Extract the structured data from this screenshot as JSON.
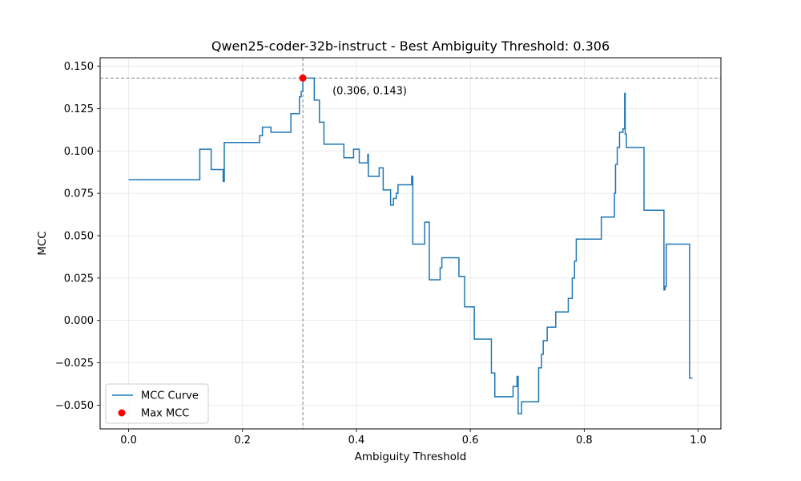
{
  "chart_data": {
    "type": "line",
    "title": "Qwen25-coder-32b-instruct - Best Ambiguity Threshold: 0.306",
    "xlabel": "Ambiguity Threshold",
    "ylabel": "MCC",
    "xlim": [
      -0.05,
      1.04
    ],
    "ylim": [
      -0.064,
      0.155
    ],
    "xticks": [
      0.0,
      0.2,
      0.4,
      0.6,
      0.8,
      1.0
    ],
    "xtick_labels": [
      "0.0",
      "0.2",
      "0.4",
      "0.6",
      "0.8",
      "1.0"
    ],
    "yticks": [
      -0.05,
      -0.025,
      0.0,
      0.025,
      0.05,
      0.075,
      0.1,
      0.125,
      0.15
    ],
    "ytick_labels": [
      "−0.050",
      "−0.025",
      "0.000",
      "0.025",
      "0.050",
      "0.075",
      "0.100",
      "0.125",
      "0.150"
    ],
    "grid": true,
    "legend_position": "lower-left",
    "series": [
      {
        "name": "MCC Curve",
        "color": "#1f77b4",
        "points": [
          [
            0.0,
            0.083
          ],
          [
            0.125,
            0.083
          ],
          [
            0.125,
            0.101
          ],
          [
            0.145,
            0.101
          ],
          [
            0.145,
            0.089
          ],
          [
            0.166,
            0.089
          ],
          [
            0.166,
            0.082
          ],
          [
            0.168,
            0.082
          ],
          [
            0.168,
            0.105
          ],
          [
            0.23,
            0.105
          ],
          [
            0.23,
            0.109
          ],
          [
            0.235,
            0.109
          ],
          [
            0.235,
            0.114
          ],
          [
            0.25,
            0.114
          ],
          [
            0.25,
            0.111
          ],
          [
            0.285,
            0.111
          ],
          [
            0.285,
            0.122
          ],
          [
            0.3,
            0.122
          ],
          [
            0.3,
            0.132
          ],
          [
            0.303,
            0.132
          ],
          [
            0.303,
            0.135
          ],
          [
            0.306,
            0.135
          ],
          [
            0.306,
            0.143
          ],
          [
            0.326,
            0.143
          ],
          [
            0.326,
            0.13
          ],
          [
            0.335,
            0.13
          ],
          [
            0.335,
            0.117
          ],
          [
            0.343,
            0.117
          ],
          [
            0.343,
            0.104
          ],
          [
            0.378,
            0.104
          ],
          [
            0.378,
            0.096
          ],
          [
            0.395,
            0.096
          ],
          [
            0.395,
            0.101
          ],
          [
            0.405,
            0.101
          ],
          [
            0.405,
            0.093
          ],
          [
            0.42,
            0.093
          ],
          [
            0.42,
            0.098
          ],
          [
            0.421,
            0.098
          ],
          [
            0.421,
            0.085
          ],
          [
            0.44,
            0.085
          ],
          [
            0.44,
            0.09
          ],
          [
            0.447,
            0.09
          ],
          [
            0.447,
            0.077
          ],
          [
            0.46,
            0.077
          ],
          [
            0.46,
            0.068
          ],
          [
            0.465,
            0.068
          ],
          [
            0.465,
            0.072
          ],
          [
            0.47,
            0.072
          ],
          [
            0.47,
            0.075
          ],
          [
            0.473,
            0.075
          ],
          [
            0.473,
            0.08
          ],
          [
            0.497,
            0.08
          ],
          [
            0.497,
            0.085
          ],
          [
            0.499,
            0.085
          ],
          [
            0.499,
            0.045
          ],
          [
            0.52,
            0.045
          ],
          [
            0.52,
            0.058
          ],
          [
            0.528,
            0.058
          ],
          [
            0.528,
            0.024
          ],
          [
            0.547,
            0.024
          ],
          [
            0.547,
            0.031
          ],
          [
            0.55,
            0.031
          ],
          [
            0.55,
            0.037
          ],
          [
            0.58,
            0.037
          ],
          [
            0.58,
            0.026
          ],
          [
            0.59,
            0.026
          ],
          [
            0.59,
            0.008
          ],
          [
            0.607,
            0.008
          ],
          [
            0.607,
            -0.011
          ],
          [
            0.637,
            -0.011
          ],
          [
            0.637,
            -0.031
          ],
          [
            0.643,
            -0.031
          ],
          [
            0.643,
            -0.045
          ],
          [
            0.675,
            -0.045
          ],
          [
            0.675,
            -0.039
          ],
          [
            0.682,
            -0.039
          ],
          [
            0.682,
            -0.033
          ],
          [
            0.684,
            -0.033
          ],
          [
            0.684,
            -0.055
          ],
          [
            0.69,
            -0.055
          ],
          [
            0.69,
            -0.048
          ],
          [
            0.72,
            -0.048
          ],
          [
            0.72,
            -0.028
          ],
          [
            0.725,
            -0.028
          ],
          [
            0.725,
            -0.02
          ],
          [
            0.728,
            -0.02
          ],
          [
            0.728,
            -0.012
          ],
          [
            0.735,
            -0.012
          ],
          [
            0.735,
            -0.004
          ],
          [
            0.75,
            -0.004
          ],
          [
            0.75,
            0.005
          ],
          [
            0.772,
            0.005
          ],
          [
            0.772,
            0.013
          ],
          [
            0.779,
            0.013
          ],
          [
            0.779,
            0.025
          ],
          [
            0.783,
            0.025
          ],
          [
            0.783,
            0.035
          ],
          [
            0.786,
            0.035
          ],
          [
            0.786,
            0.048
          ],
          [
            0.83,
            0.048
          ],
          [
            0.83,
            0.061
          ],
          [
            0.853,
            0.061
          ],
          [
            0.853,
            0.075
          ],
          [
            0.855,
            0.075
          ],
          [
            0.855,
            0.092
          ],
          [
            0.858,
            0.092
          ],
          [
            0.858,
            0.102
          ],
          [
            0.862,
            0.102
          ],
          [
            0.862,
            0.111
          ],
          [
            0.868,
            0.111
          ],
          [
            0.868,
            0.113
          ],
          [
            0.871,
            0.113
          ],
          [
            0.871,
            0.134
          ],
          [
            0.872,
            0.134
          ],
          [
            0.872,
            0.11
          ],
          [
            0.874,
            0.11
          ],
          [
            0.874,
            0.102
          ],
          [
            0.905,
            0.102
          ],
          [
            0.905,
            0.065
          ],
          [
            0.94,
            0.065
          ],
          [
            0.94,
            0.018
          ],
          [
            0.942,
            0.018
          ],
          [
            0.942,
            0.02
          ],
          [
            0.944,
            0.02
          ],
          [
            0.944,
            0.045
          ],
          [
            0.985,
            0.045
          ],
          [
            0.985,
            -0.034
          ],
          [
            0.99,
            -0.034
          ]
        ]
      },
      {
        "name": "Max MCC",
        "color": "#ff0000",
        "points": [
          [
            0.306,
            0.143
          ]
        ]
      }
    ],
    "reference_lines": {
      "x": 0.306,
      "y": 0.143,
      "color": "#808080"
    },
    "annotation": {
      "text": "(0.306, 0.143)",
      "x": 0.306,
      "y": 0.143
    }
  }
}
